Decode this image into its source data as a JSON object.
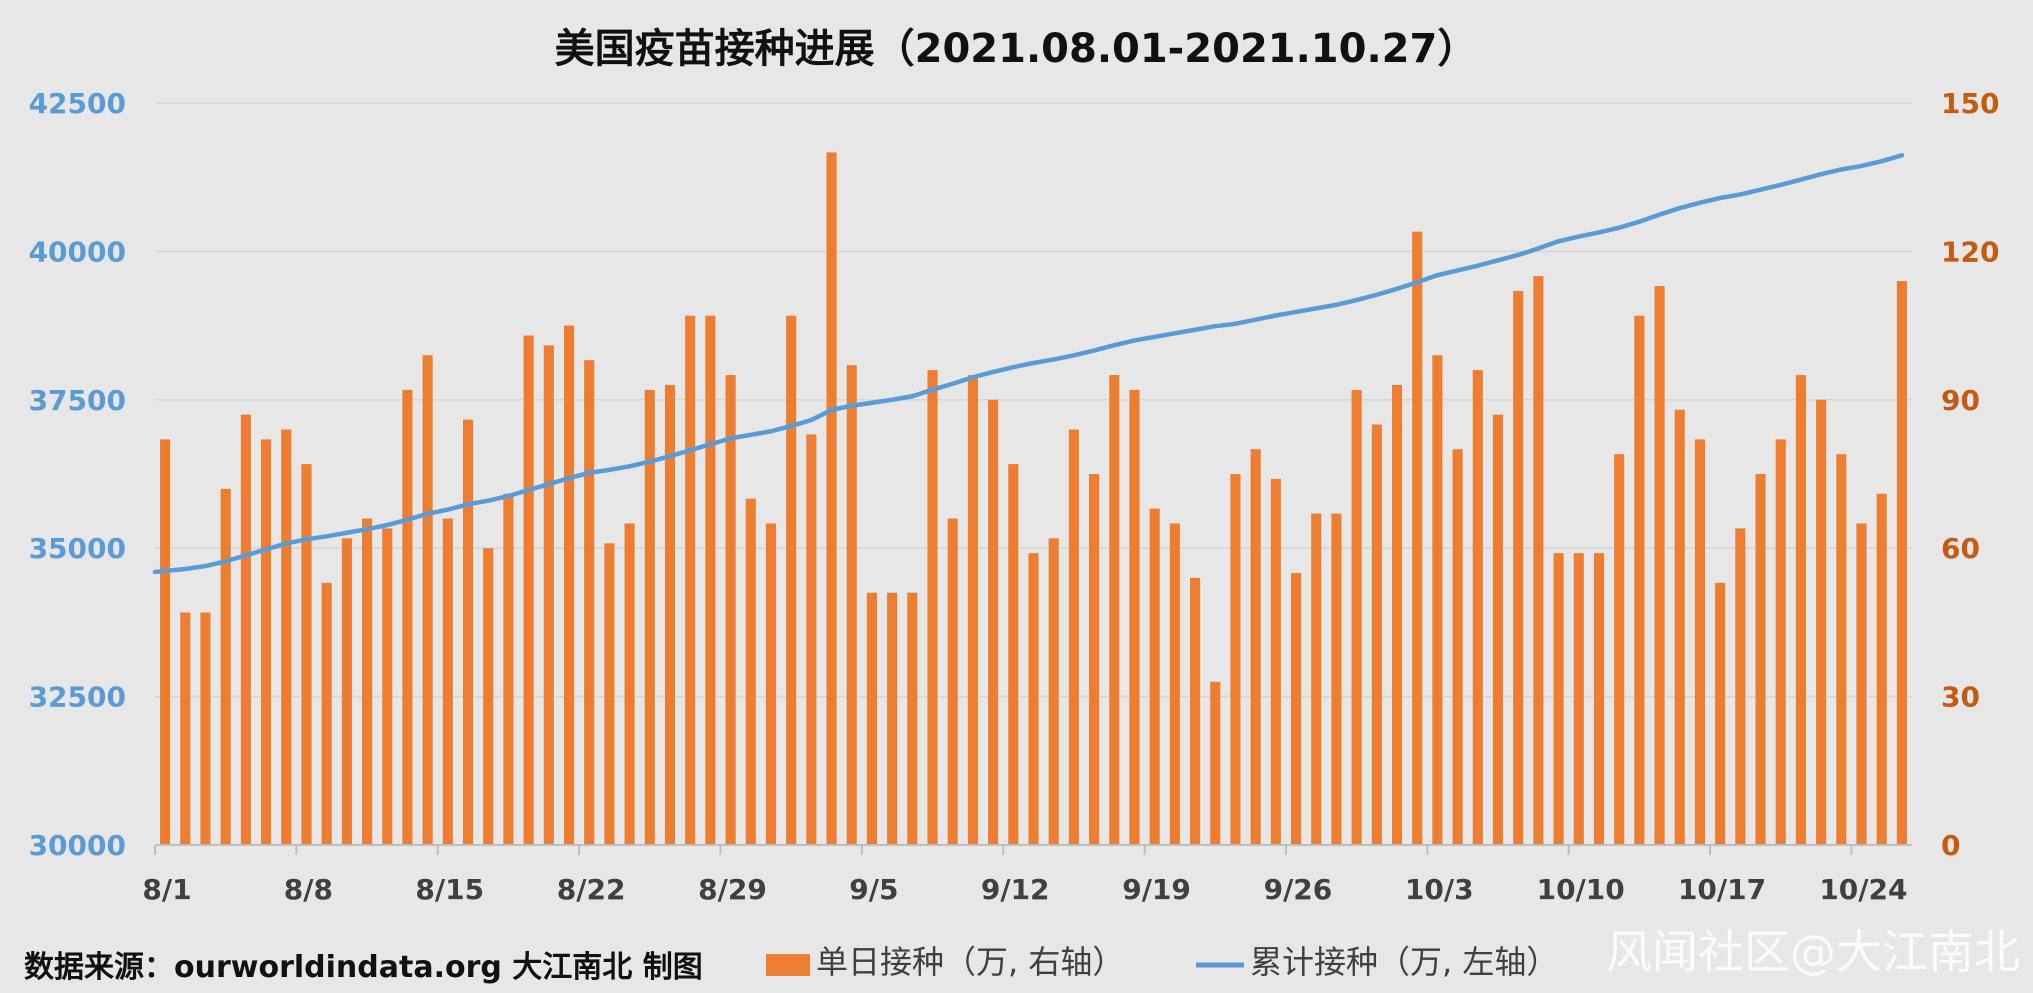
{
  "chart_data": {
    "type": "bar+line",
    "title": "美国疫苗接种进展（2021.08.01-2021.10.27）",
    "source_text": "数据来源：ourworldindata.org 大江南北 制图",
    "watermark": "风闻社区@大江南北",
    "left_axis": {
      "ylim": [
        30000,
        42500
      ],
      "ticks": [
        "42500",
        "40000",
        "37500",
        "35000",
        "32500",
        "30000"
      ],
      "tick_values": [
        42500,
        40000,
        37500,
        35000,
        32500,
        30000
      ]
    },
    "right_axis": {
      "ylim": [
        0,
        150
      ],
      "ticks": [
        "150",
        "120",
        "90",
        "60",
        "30",
        "0"
      ],
      "tick_values": [
        150,
        120,
        90,
        60,
        30,
        0
      ]
    },
    "x_tick_labels": [
      {
        "day_index": 0,
        "label": "8/1"
      },
      {
        "day_index": 7,
        "label": "8/8"
      },
      {
        "day_index": 14,
        "label": "8/15"
      },
      {
        "day_index": 21,
        "label": "8/22"
      },
      {
        "day_index": 28,
        "label": "8/29"
      },
      {
        "day_index": 35,
        "label": "9/5"
      },
      {
        "day_index": 42,
        "label": "9/12"
      },
      {
        "day_index": 49,
        "label": "9/19"
      },
      {
        "day_index": 56,
        "label": "9/26"
      },
      {
        "day_index": 63,
        "label": "10/3"
      },
      {
        "day_index": 70,
        "label": "10/10"
      },
      {
        "day_index": 77,
        "label": "10/17"
      },
      {
        "day_index": 84,
        "label": "10/24"
      }
    ],
    "series": [
      {
        "name": "单日接种（万, 右轴）",
        "type": "bar",
        "axis": "right",
        "color": "#ed7d31",
        "values": [
          82,
          47,
          47,
          72,
          87,
          82,
          84,
          77,
          53,
          62,
          66,
          64,
          92,
          99,
          66,
          86,
          60,
          71,
          103,
          101,
          105,
          98,
          61,
          65,
          92,
          93,
          107,
          107,
          95,
          70,
          65,
          107,
          83,
          140,
          97,
          51,
          51,
          51,
          96,
          66,
          95,
          90,
          77,
          59,
          62,
          84,
          75,
          95,
          92,
          68,
          65,
          54,
          33,
          75,
          80,
          74,
          55,
          67,
          67,
          92,
          85,
          93,
          124,
          99,
          80,
          96,
          87,
          112,
          115,
          59,
          59,
          59,
          79,
          107,
          113,
          88,
          82,
          53,
          64,
          75,
          82,
          95,
          90,
          79,
          65,
          71,
          114
        ]
      },
      {
        "name": "累计接种（万, 左轴）",
        "type": "line",
        "axis": "left",
        "color": "#5b9bd5",
        "values": [
          34600,
          34650,
          34700,
          34780,
          34880,
          34980,
          35080,
          35150,
          35200,
          35260,
          35320,
          35390,
          35480,
          35580,
          35650,
          35740,
          35800,
          35880,
          35980,
          36080,
          36180,
          36270,
          36320,
          36380,
          36460,
          36550,
          36650,
          36750,
          36850,
          36910,
          36970,
          37060,
          37160,
          37330,
          37400,
          37450,
          37500,
          37560,
          37670,
          37770,
          37880,
          37970,
          38050,
          38120,
          38180,
          38250,
          38330,
          38420,
          38500,
          38560,
          38620,
          38680,
          38740,
          38780,
          38850,
          38920,
          38980,
          39040,
          39100,
          39180,
          39270,
          39370,
          39480,
          39600,
          39680,
          39760,
          39850,
          39940,
          40050,
          40170,
          40250,
          40320,
          40400,
          40500,
          40620,
          40730,
          40820,
          40900,
          40960,
          41040,
          41120,
          41210,
          41300,
          41380,
          41440,
          41520,
          41620
        ]
      }
    ]
  }
}
